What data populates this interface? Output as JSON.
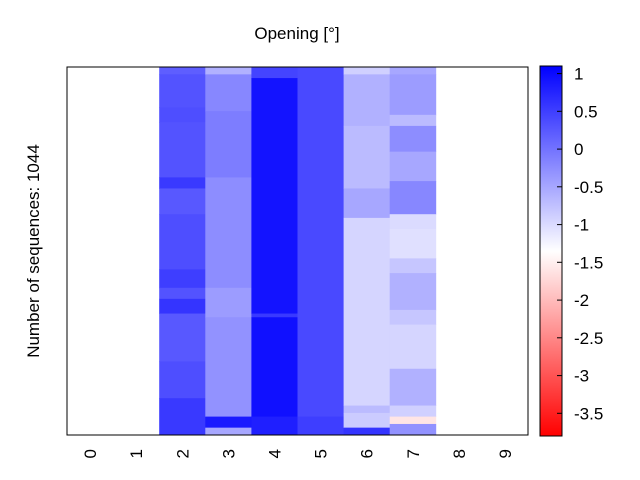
{
  "chart_data": {
    "type": "heatmap",
    "title": "Opening [°]",
    "xlabel": "",
    "ylabel": "Number of sequences: 1044",
    "x_categories": [
      "0",
      "1",
      "2",
      "3",
      "4",
      "5",
      "6",
      "7",
      "8",
      "9"
    ],
    "n_sequences": 1044,
    "colorbar": {
      "ticks": [
        "1",
        "0.5",
        "0",
        "-0.5",
        "-1",
        "-1.5",
        "-2",
        "-2.5",
        "-3",
        "-3.5"
      ],
      "range": [
        -3.8,
        1.1
      ],
      "colormap": [
        "#ff0000",
        "#ffffff",
        "#0000ff"
      ],
      "center": -1.35
    },
    "columns": [
      {
        "x": "0",
        "segments": []
      },
      {
        "x": "1",
        "segments": []
      },
      {
        "x": "2",
        "segments": [
          {
            "from": 0,
            "to": 0.02,
            "value": 0.2
          },
          {
            "from": 0.02,
            "to": 0.11,
            "value": 0.3
          },
          {
            "from": 0.11,
            "to": 0.15,
            "value": 0.35
          },
          {
            "from": 0.15,
            "to": 0.3,
            "value": 0.3
          },
          {
            "from": 0.3,
            "to": 0.33,
            "value": 0.55
          },
          {
            "from": 0.33,
            "to": 0.4,
            "value": 0.25
          },
          {
            "from": 0.4,
            "to": 0.55,
            "value": 0.35
          },
          {
            "from": 0.55,
            "to": 0.6,
            "value": 0.5
          },
          {
            "from": 0.6,
            "to": 0.63,
            "value": 0.3
          },
          {
            "from": 0.63,
            "to": 0.67,
            "value": 0.6
          },
          {
            "from": 0.67,
            "to": 0.8,
            "value": 0.25
          },
          {
            "from": 0.8,
            "to": 0.9,
            "value": 0.35
          },
          {
            "from": 0.9,
            "to": 1.0,
            "value": 0.55
          }
        ]
      },
      {
        "x": "3",
        "segments": [
          {
            "from": 0,
            "to": 0.02,
            "value": -0.6
          },
          {
            "from": 0.02,
            "to": 0.12,
            "value": -0.2
          },
          {
            "from": 0.12,
            "to": 0.3,
            "value": -0.1
          },
          {
            "from": 0.3,
            "to": 0.6,
            "value": -0.25
          },
          {
            "from": 0.6,
            "to": 0.68,
            "value": -0.4
          },
          {
            "from": 0.68,
            "to": 0.95,
            "value": -0.3
          },
          {
            "from": 0.95,
            "to": 0.98,
            "value": 0.85
          },
          {
            "from": 0.98,
            "to": 1.0,
            "value": -0.5
          }
        ]
      },
      {
        "x": "4",
        "segments": [
          {
            "from": 0,
            "to": 0.03,
            "value": 0.45
          },
          {
            "from": 0.03,
            "to": 0.67,
            "value": 0.92
          },
          {
            "from": 0.67,
            "to": 0.68,
            "value": 0.55
          },
          {
            "from": 0.68,
            "to": 0.95,
            "value": 0.95
          },
          {
            "from": 0.95,
            "to": 1.0,
            "value": 0.8
          }
        ]
      },
      {
        "x": "5",
        "segments": [
          {
            "from": 0,
            "to": 0.95,
            "value": 0.4
          },
          {
            "from": 0.95,
            "to": 1.0,
            "value": 0.5
          }
        ]
      },
      {
        "x": "6",
        "segments": [
          {
            "from": 0,
            "to": 0.02,
            "value": -0.9
          },
          {
            "from": 0.02,
            "to": 0.16,
            "value": -0.6
          },
          {
            "from": 0.16,
            "to": 0.33,
            "value": -0.7
          },
          {
            "from": 0.33,
            "to": 0.41,
            "value": -0.5
          },
          {
            "from": 0.41,
            "to": 0.92,
            "value": -0.95
          },
          {
            "from": 0.92,
            "to": 0.94,
            "value": -0.7
          },
          {
            "from": 0.94,
            "to": 0.98,
            "value": -0.85
          },
          {
            "from": 0.98,
            "to": 1.0,
            "value": 0.6
          }
        ]
      },
      {
        "x": "7",
        "segments": [
          {
            "from": 0,
            "to": 0.02,
            "value": -0.5
          },
          {
            "from": 0.02,
            "to": 0.13,
            "value": -0.4
          },
          {
            "from": 0.13,
            "to": 0.16,
            "value": -0.7
          },
          {
            "from": 0.16,
            "to": 0.23,
            "value": -0.25
          },
          {
            "from": 0.23,
            "to": 0.31,
            "value": -0.5
          },
          {
            "from": 0.31,
            "to": 0.4,
            "value": -0.2
          },
          {
            "from": 0.4,
            "to": 0.44,
            "value": -1.0
          },
          {
            "from": 0.44,
            "to": 0.52,
            "value": -1.05
          },
          {
            "from": 0.52,
            "to": 0.56,
            "value": -0.8
          },
          {
            "from": 0.56,
            "to": 0.66,
            "value": -0.6
          },
          {
            "from": 0.66,
            "to": 0.7,
            "value": -0.8
          },
          {
            "from": 0.7,
            "to": 0.82,
            "value": -0.95
          },
          {
            "from": 0.82,
            "to": 0.92,
            "value": -0.6
          },
          {
            "from": 0.92,
            "to": 0.95,
            "value": -0.9
          },
          {
            "from": 0.95,
            "to": 0.97,
            "value": -1.6
          },
          {
            "from": 0.97,
            "to": 1.0,
            "value": -0.3
          }
        ]
      },
      {
        "x": "8",
        "segments": []
      },
      {
        "x": "9",
        "segments": []
      }
    ]
  }
}
